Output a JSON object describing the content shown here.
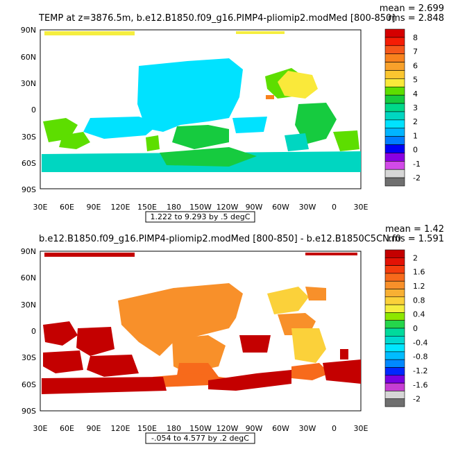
{
  "panels": [
    {
      "id": "panel1",
      "title": "TEMP at z=3876.5m, b.e12.B1850.f09_g16.PIMP4-pliomip2.modMed [800-850]",
      "stats": {
        "mean": "mean = 2.699",
        "rms": "rms = 2.848"
      },
      "contour_info": "1.222 to 9.293 by .5 degC",
      "lat_labels": [
        "90N",
        "60N",
        "30N",
        "0",
        "30S",
        "60S",
        "90S"
      ],
      "lon_labels": [
        "30E",
        "60E",
        "90E",
        "120E",
        "150E",
        "180",
        "150W",
        "120W",
        "90W",
        "60W",
        "30W",
        "0",
        "30E"
      ],
      "colorbar": {
        "labels": [
          "8",
          "7",
          "6",
          "5",
          "4",
          "3",
          "2",
          "1",
          "0",
          "-1",
          "-2"
        ],
        "colors": [
          "#d50000",
          "#f51d05",
          "#f5571a",
          "#f8821d",
          "#f8a12b",
          "#fbc630",
          "#fae93a",
          "#5dde00",
          "#16cb3f",
          "#00d98a",
          "#00d6c1",
          "#00e2ff",
          "#00b5ff",
          "#007cff",
          "#0000f7",
          "#8a00e2",
          "#d24ae8",
          "#d6d6d6",
          "#6f6f6f"
        ]
      }
    },
    {
      "id": "panel2",
      "title": "b.e12.B1850.f09_g16.PIMP4-pliomip2.modMed [800-850] - b.e12.B1850C5CN.f0",
      "stats": {
        "mean": "mean = 1.42",
        "rms": "rms = 1.591"
      },
      "contour_info": "-.054 to 4.577 by .2 degC",
      "lat_labels": [
        "90N",
        "60N",
        "30N",
        "0",
        "30S",
        "60S",
        "90S"
      ],
      "lon_labels": [
        "30E",
        "60E",
        "90E",
        "120E",
        "150E",
        "180",
        "150W",
        "120W",
        "90W",
        "60W",
        "30W",
        "0",
        "30E"
      ],
      "colorbar": {
        "labels": [
          "2",
          "1.6",
          "1.2",
          "0.8",
          "0.4",
          "0",
          "-0.4",
          "-0.8",
          "-1.2",
          "-1.6",
          "-2"
        ],
        "colors": [
          "#c40000",
          "#e31205",
          "#f43c0d",
          "#f76a1b",
          "#f8902a",
          "#f8b033",
          "#fbd13a",
          "#f5ee3f",
          "#8de700",
          "#25d54b",
          "#00da9c",
          "#00d9cf",
          "#00e6ff",
          "#00bcff",
          "#0089ff",
          "#0028ff",
          "#7a00e2",
          "#c73ed3",
          "#d6d6d6",
          "#6f6f6f"
        ]
      }
    }
  ]
}
